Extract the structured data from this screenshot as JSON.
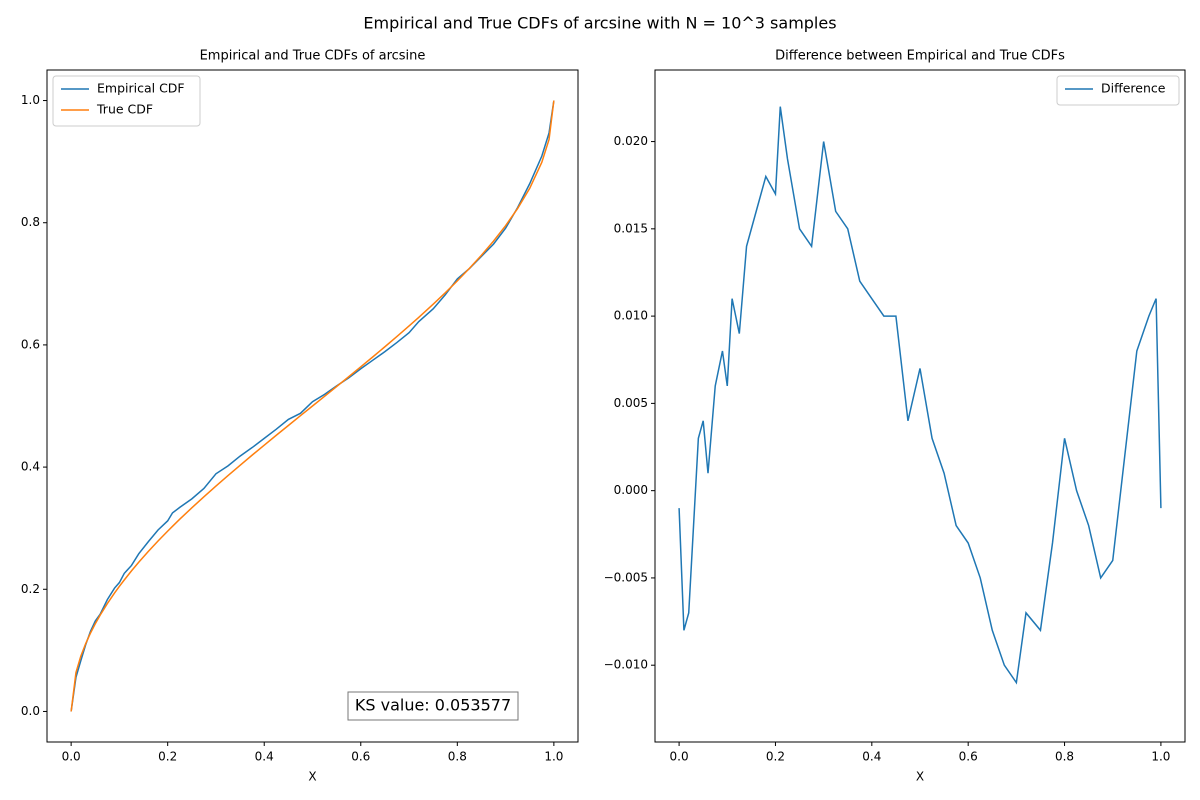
{
  "title": "Empirical and True CDFs of arcsine with N = 10^3 samples",
  "chart_data": [
    {
      "type": "line",
      "title": "Empirical and True CDFs of arcsine",
      "x_label": "X",
      "x": [
        0,
        0.01,
        0.02,
        0.03,
        0.04,
        0.05,
        0.06,
        0.075,
        0.09,
        0.1,
        0.11,
        0.125,
        0.14,
        0.16,
        0.18,
        0.2,
        0.21,
        0.225,
        0.25,
        0.275,
        0.3,
        0.325,
        0.35,
        0.375,
        0.4,
        0.425,
        0.45,
        0.475,
        0.5,
        0.525,
        0.55,
        0.575,
        0.6,
        0.625,
        0.65,
        0.675,
        0.7,
        0.72,
        0.75,
        0.775,
        0.8,
        0.825,
        0.85,
        0.875,
        0.9,
        0.925,
        0.95,
        0.975,
        0.99,
        1.0
      ],
      "series": [
        {
          "name": "Empirical CDF",
          "color": "#1f77b4",
          "values": [
            0,
            0.056,
            0.083,
            0.109,
            0.131,
            0.148,
            0.159,
            0.183,
            0.202,
            0.211,
            0.226,
            0.239,
            0.258,
            0.278,
            0.297,
            0.312,
            0.325,
            0.334,
            0.348,
            0.365,
            0.389,
            0.402,
            0.418,
            0.432,
            0.447,
            0.462,
            0.478,
            0.488,
            0.507,
            0.519,
            0.533,
            0.546,
            0.561,
            0.575,
            0.589,
            0.604,
            0.62,
            0.638,
            0.659,
            0.682,
            0.708,
            0.725,
            0.745,
            0.765,
            0.791,
            0.825,
            0.864,
            0.909,
            0.947,
            1.0
          ]
        },
        {
          "name": "True CDF",
          "color": "#ff7f0e",
          "values": [
            0,
            0.0638,
            0.0903,
            0.1108,
            0.1282,
            0.1436,
            0.1575,
            0.1766,
            0.194,
            0.2048,
            0.2152,
            0.2301,
            0.2442,
            0.262,
            0.279,
            0.2952,
            0.3031,
            0.3147,
            0.3333,
            0.3514,
            0.369,
            0.3862,
            0.403,
            0.4196,
            0.4359,
            0.4521,
            0.4681,
            0.4841,
            0.5,
            0.5159,
            0.5319,
            0.5479,
            0.5641,
            0.5804,
            0.597,
            0.6138,
            0.631,
            0.645,
            0.6667,
            0.6853,
            0.7048,
            0.7252,
            0.7468,
            0.7699,
            0.7952,
            0.8234,
            0.8564,
            0.8989,
            0.9362,
            1.0
          ]
        }
      ],
      "xlim": [
        -0.05,
        1.05
      ],
      "ylim": [
        -0.05,
        1.05
      ],
      "xticks": [
        {
          "value": 0,
          "label": "0.0"
        },
        {
          "value": 0.2,
          "label": "0.2"
        },
        {
          "value": 0.4,
          "label": "0.4"
        },
        {
          "value": 0.6,
          "label": "0.6"
        },
        {
          "value": 0.8,
          "label": "0.8"
        },
        {
          "value": 1,
          "label": "1.0"
        }
      ],
      "yticks": [
        {
          "value": 0,
          "label": "0.0"
        },
        {
          "value": 0.2,
          "label": "0.2"
        },
        {
          "value": 0.4,
          "label": "0.4"
        },
        {
          "value": 0.6,
          "label": "0.6"
        },
        {
          "value": 0.8,
          "label": "0.8"
        },
        {
          "value": 1,
          "label": "1.0"
        }
      ],
      "legend": "upper left",
      "annotation": "KS value: 0.053577"
    },
    {
      "type": "line",
      "title": "Difference between Empirical and True CDFs",
      "x_label": "X",
      "x": [
        0,
        0.01,
        0.02,
        0.03,
        0.04,
        0.05,
        0.06,
        0.075,
        0.09,
        0.1,
        0.11,
        0.125,
        0.14,
        0.16,
        0.18,
        0.2,
        0.21,
        0.225,
        0.25,
        0.275,
        0.3,
        0.325,
        0.35,
        0.375,
        0.4,
        0.425,
        0.45,
        0.475,
        0.5,
        0.525,
        0.55,
        0.575,
        0.6,
        0.625,
        0.65,
        0.675,
        0.7,
        0.72,
        0.75,
        0.775,
        0.8,
        0.825,
        0.85,
        0.875,
        0.9,
        0.925,
        0.95,
        0.975,
        0.99,
        1.0
      ],
      "series": [
        {
          "name": "Difference",
          "color": "#1f77b4",
          "values": [
            -0.001,
            -0.008,
            -0.007,
            -0.002,
            0.003,
            0.004,
            0.001,
            0.006,
            0.008,
            0.006,
            0.011,
            0.009,
            0.014,
            0.016,
            0.018,
            0.017,
            0.022,
            0.019,
            0.015,
            0.014,
            0.02,
            0.016,
            0.015,
            0.012,
            0.011,
            0.01,
            0.01,
            0.004,
            0.007,
            0.003,
            0.001,
            -0.002,
            -0.003,
            -0.005,
            -0.008,
            -0.01,
            -0.011,
            -0.007,
            -0.008,
            -0.003,
            0.003,
            0.0,
            -0.002,
            -0.005,
            -0.004,
            0.002,
            0.008,
            0.01,
            0.011,
            -0.001
          ]
        }
      ],
      "xlim": [
        -0.05,
        1.05
      ],
      "ylim": [
        -0.0144,
        0.0241
      ],
      "xticks": [
        {
          "value": 0,
          "label": "0.0"
        },
        {
          "value": 0.2,
          "label": "0.2"
        },
        {
          "value": 0.4,
          "label": "0.4"
        },
        {
          "value": 0.6,
          "label": "0.6"
        },
        {
          "value": 0.8,
          "label": "0.8"
        },
        {
          "value": 1,
          "label": "1.0"
        }
      ],
      "yticks": [
        {
          "value": -0.01,
          "label": "−0.010"
        },
        {
          "value": -0.005,
          "label": "−0.005"
        },
        {
          "value": 0,
          "label": "0.000"
        },
        {
          "value": 0.005,
          "label": "0.005"
        },
        {
          "value": 0.01,
          "label": "0.010"
        },
        {
          "value": 0.015,
          "label": "0.015"
        },
        {
          "value": 0.02,
          "label": "0.020"
        }
      ],
      "legend": "upper right"
    }
  ]
}
